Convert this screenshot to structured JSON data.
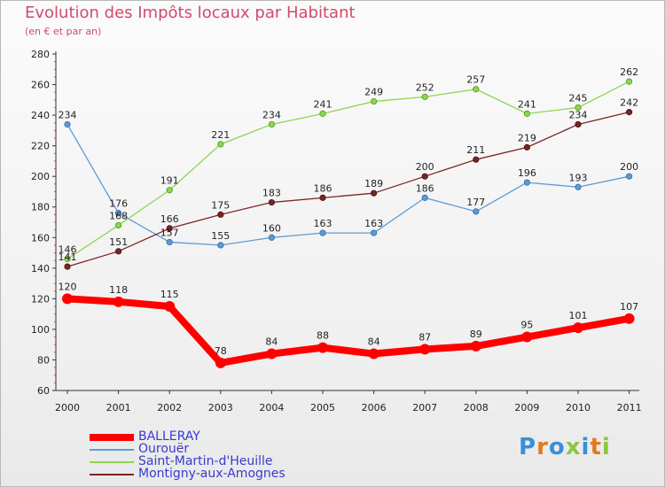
{
  "title": "Evolution des Impôts locaux par Habitant",
  "subtitle": "(en € et par an)",
  "logo": "Proxiti",
  "colors": {
    "title": "#d14a6c",
    "legend_text": "#3a3ad0",
    "axis": "#333333"
  },
  "chart_data": {
    "type": "line",
    "title": "Evolution des Impôts locaux par Habitant",
    "subtitle": "(en € et par an)",
    "xlabel": "",
    "ylabel": "",
    "ylim": [
      60,
      280
    ],
    "yticks": [
      60,
      80,
      100,
      120,
      140,
      160,
      180,
      200,
      220,
      240,
      260,
      280
    ],
    "categories": [
      "2000",
      "2001",
      "2002",
      "2003",
      "2004",
      "2005",
      "2006",
      "2007",
      "2008",
      "2009",
      "2010",
      "2011"
    ],
    "grid": false,
    "legend_position": "bottom-left",
    "series": [
      {
        "name": "BALLERAY",
        "color": "#ff0000",
        "values": [
          120,
          118,
          115,
          78,
          84,
          88,
          84,
          87,
          89,
          95,
          101,
          107
        ]
      },
      {
        "name": "Ourouër",
        "color": "#5b9bd5",
        "values": [
          234,
          176,
          157,
          155,
          160,
          163,
          163,
          186,
          177,
          196,
          193,
          200
        ]
      },
      {
        "name": "Saint-Martin-d'Heuille",
        "color": "#8cd64f",
        "values": [
          146,
          168,
          191,
          221,
          234,
          241,
          249,
          252,
          257,
          241,
          245,
          262
        ]
      },
      {
        "name": "Montigny-aux-Amognes",
        "color": "#7a2424",
        "values": [
          141,
          151,
          166,
          175,
          183,
          186,
          189,
          200,
          211,
          219,
          234,
          242
        ]
      }
    ]
  }
}
